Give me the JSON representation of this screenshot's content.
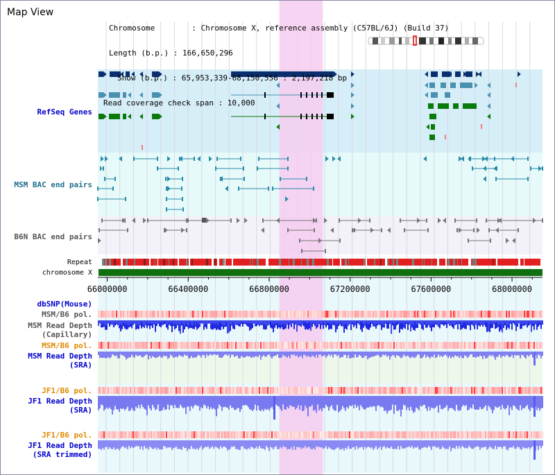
{
  "header": {
    "title": "Map View",
    "info_lines": [
      "Chromosome        : Chromosome X, reference assembly (C57BL/6J) (Build 37)",
      "Length (b.p.) : 166,650,296",
      "Show (b.p.) : 65,953,339-68,150,556 : 2,197,218 bp",
      "Read coverage check span : 10,000"
    ]
  },
  "tracks": {
    "refseq": "RefSeq Genes",
    "msm_bac": "MSM BAC end pairs",
    "b6n_bac": "B6N BAC end pairs",
    "repeat": "Repeat",
    "chromosome": "chromosome X",
    "dbsnp": "dbSNP(Mouse)",
    "msm_b6_pol_1": "MSM/B6 pol.",
    "msm_read_depth_cap": "MSM Read Depth\n(Capillary)",
    "msm_b6_pol_2": "MSM/B6 pol.",
    "msm_read_depth_sra": "MSM Read Depth\n(SRA)",
    "jf1_b6_pol_1": "JF1/B6 pol.",
    "jf1_read_depth_sra": "JF1 Read Depth\n(SRA)",
    "jf1_b6_pol_2": "JF1/B6 pol.",
    "jf1_read_depth_trim": "JF1 Read Depth\n(SRA trimmed)"
  },
  "axis": {
    "ticks": [
      "66000000",
      "66400000",
      "66800000",
      "67200000",
      "67600000",
      "68000000"
    ],
    "tick_values": [
      66000000,
      66400000,
      66800000,
      67200000,
      67600000,
      68000000
    ],
    "range": [
      65953339,
      68150556
    ]
  },
  "highlight_region": [
    66850000,
    67065000
  ],
  "colors": {
    "refseq_bg": "#d6eef8",
    "msm_bg": "#e6fafa",
    "b6n_bg": "#f2f2f8",
    "highlight": "#f6cdf0",
    "dark_gene": "#0b2f6e",
    "teal_gene": "#4a90b0",
    "green_gene": "#0a7a0a",
    "bac": "#2a8aa8",
    "chrom_green": "#107010",
    "depth_blue": "#1f28e0",
    "depth_light": "#7a7af0",
    "label_blue": "#0000cc",
    "label_orange": "#e08a00"
  }
}
